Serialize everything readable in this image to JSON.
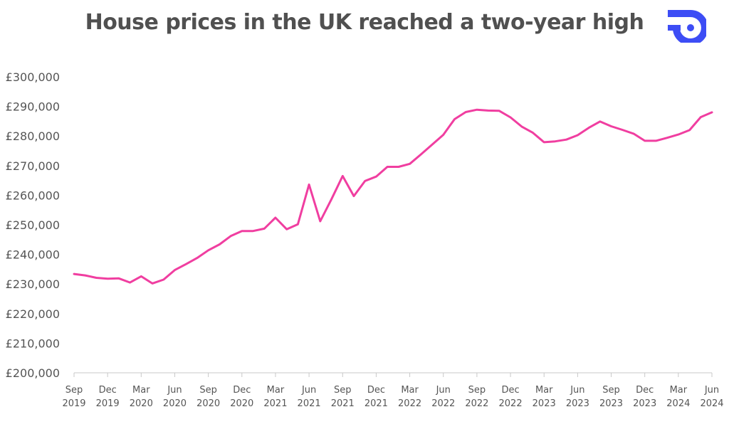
{
  "title": "House prices in the UK reached a two-year high",
  "brand_color": "#3d4df5",
  "chart_data": {
    "type": "line",
    "title": "House prices in the UK reached a two-year high",
    "xlabel": "",
    "ylabel": "",
    "ylim": [
      200000,
      300000
    ],
    "yticks": [
      "£200,000",
      "£210,000",
      "£220,000",
      "£230,000",
      "£240,000",
      "£250,000",
      "£260,000",
      "£270,000",
      "£280,000",
      "£290,000",
      "£300,000"
    ],
    "ytick_values": [
      200000,
      210000,
      220000,
      230000,
      240000,
      250000,
      260000,
      270000,
      280000,
      290000,
      300000
    ],
    "xtick_labels": [
      [
        "Sep",
        "2019"
      ],
      [
        "Dec",
        "2019"
      ],
      [
        "Mar",
        "2020"
      ],
      [
        "Jun",
        "2020"
      ],
      [
        "Sep",
        "2020"
      ],
      [
        "Dec",
        "2020"
      ],
      [
        "Mar",
        "2021"
      ],
      [
        "Jun",
        "2021"
      ],
      [
        "Sep",
        "2021"
      ],
      [
        "Dec",
        "2021"
      ],
      [
        "Mar",
        "2022"
      ],
      [
        "Jun",
        "2022"
      ],
      [
        "Sep",
        "2022"
      ],
      [
        "Dec",
        "2022"
      ],
      [
        "Mar",
        "2023"
      ],
      [
        "Jun",
        "2023"
      ],
      [
        "Sep",
        "2023"
      ],
      [
        "Dec",
        "2023"
      ],
      [
        "Mar",
        "2024"
      ],
      [
        "Jun",
        "2024"
      ]
    ],
    "x": [
      "Sep 2019",
      "Oct 2019",
      "Nov 2019",
      "Dec 2019",
      "Jan 2020",
      "Feb 2020",
      "Mar 2020",
      "Apr 2020",
      "May 2020",
      "Jun 2020",
      "Jul 2020",
      "Aug 2020",
      "Sep 2020",
      "Oct 2020",
      "Nov 2020",
      "Dec 2020",
      "Jan 2021",
      "Feb 2021",
      "Mar 2021",
      "Apr 2021",
      "May 2021",
      "Jun 2021",
      "Jul 2021",
      "Aug 2021",
      "Sep 2021",
      "Oct 2021",
      "Nov 2021",
      "Dec 2021",
      "Jan 2022",
      "Feb 2022",
      "Mar 2022",
      "Apr 2022",
      "May 2022",
      "Jun 2022",
      "Jul 2022",
      "Aug 2022",
      "Sep 2022",
      "Oct 2022",
      "Nov 2022",
      "Dec 2022",
      "Jan 2023",
      "Feb 2023",
      "Mar 2023",
      "Apr 2023",
      "May 2023",
      "Jun 2023",
      "Jul 2023",
      "Aug 2023",
      "Sep 2023",
      "Oct 2023",
      "Nov 2023",
      "Dec 2023",
      "Jan 2024",
      "Feb 2024",
      "Mar 2024",
      "Apr 2024",
      "May 2024",
      "Jun 2024"
    ],
    "series": [
      {
        "color": "#f03ea0",
        "values": [
          233400,
          232900,
          232100,
          231800,
          231900,
          230500,
          232600,
          230200,
          231500,
          234700,
          236700,
          238800,
          241400,
          243400,
          246200,
          247900,
          247900,
          248700,
          252400,
          248500,
          250200,
          263600,
          251200,
          258600,
          266500,
          259700,
          264800,
          266300,
          269600,
          269600,
          270600,
          273800,
          277100,
          280400,
          285700,
          288100,
          288900,
          288600,
          288500,
          286300,
          283200,
          281100,
          277900,
          278200,
          278800,
          280300,
          282800,
          284900,
          283300,
          282100,
          280800,
          278400,
          278400,
          279400,
          280500,
          282000,
          286400,
          288000
        ]
      }
    ]
  }
}
